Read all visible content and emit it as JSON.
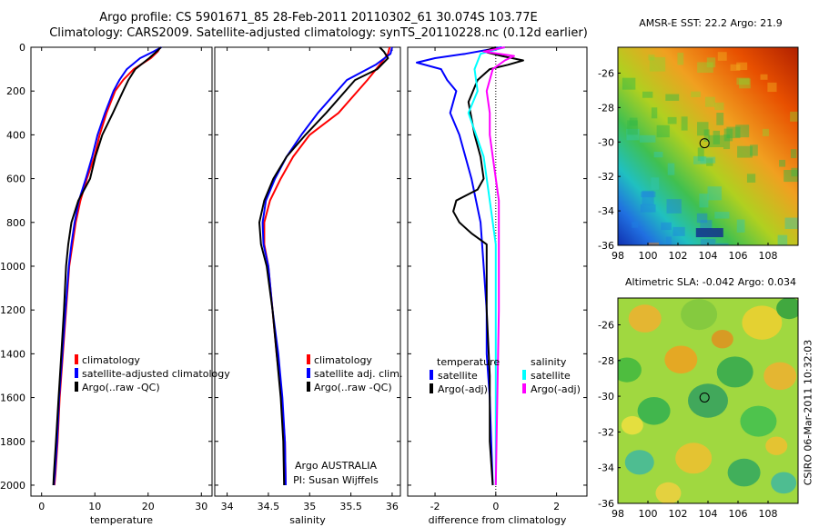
{
  "title_line1": "Argo profile: CS 5901671_85 28-Feb-2011 20110302_61 30.074S 103.77E",
  "title_line2": "Climatology: CARS2009. Satellite-adjusted climatology: synTS_20110228.nc (0.12d earlier)",
  "credit": "CSIRO 06-Mar-2011 10:32:03",
  "colors": {
    "climatology": "#ff0000",
    "satellite": "#0000ff",
    "argo": "#000000",
    "sat_salinity": "#00ffff",
    "argo_adj_salinity": "#ff00ff"
  },
  "chart_data": [
    {
      "type": "line",
      "name": "temperature-panel",
      "xlabel": "temperature",
      "ylabel": "",
      "xlim": [
        -2,
        32
      ],
      "ylim": [
        2050,
        0
      ],
      "xticks": [
        0,
        10,
        20,
        30
      ],
      "yticks": [
        0,
        200,
        400,
        600,
        800,
        1000,
        1200,
        1400,
        1600,
        1800,
        2000
      ],
      "series": [
        {
          "name": "climatology",
          "color": "#ff0000",
          "x": [
            22.3,
            21.8,
            20.5,
            17.3,
            15.3,
            13.8,
            12.2,
            10.9,
            9.9,
            8.5,
            7.3,
            6.4,
            5.8,
            5.2,
            4.6,
            4.0,
            3.4,
            3.0,
            2.6,
            2.4
          ],
          "y": [
            0,
            20,
            50,
            100,
            150,
            200,
            300,
            400,
            500,
            600,
            700,
            800,
            900,
            1000,
            1200,
            1400,
            1600,
            1800,
            1950,
            2000
          ]
        },
        {
          "name": "satellite-adjusted climatology",
          "color": "#0000ff",
          "x": [
            22.5,
            21.0,
            18.5,
            16.0,
            14.6,
            13.5,
            11.9,
            10.5,
            9.5,
            8.3,
            7.0,
            6.2,
            5.6,
            5.1,
            4.5,
            3.9,
            3.3,
            2.9,
            2.5,
            2.3
          ],
          "y": [
            0,
            20,
            50,
            100,
            150,
            200,
            300,
            400,
            500,
            600,
            700,
            800,
            900,
            1000,
            1200,
            1400,
            1600,
            1800,
            1950,
            2000
          ]
        },
        {
          "name": "Argo(..raw -QC)",
          "color": "#000000",
          "x": [
            22.4,
            21.6,
            20.2,
            17.6,
            16.3,
            15.3,
            13.4,
            11.4,
            10.1,
            9.1,
            6.9,
            5.6,
            5.0,
            4.6,
            4.2,
            3.7,
            3.2,
            2.7,
            2.3,
            2.2
          ],
          "y": [
            0,
            20,
            50,
            100,
            150,
            200,
            300,
            400,
            500,
            600,
            700,
            800,
            900,
            1000,
            1200,
            1400,
            1600,
            1800,
            1950,
            2000
          ]
        }
      ],
      "legend": {
        "position": "lower-center",
        "entries": [
          "climatology",
          "satellite-adjusted climatology",
          "Argo(..raw -QC)"
        ]
      }
    },
    {
      "type": "line",
      "name": "salinity-panel",
      "xlabel": "salinity",
      "ylabel": "",
      "xlim": [
        33.85,
        36.1
      ],
      "ylim": [
        2050,
        0
      ],
      "xticks": [
        34,
        34.5,
        35,
        35.5,
        36
      ],
      "xticklabels": [
        "34",
        "34.5",
        "35",
        "35.5",
        "36"
      ],
      "series": [
        {
          "name": "climatology",
          "color": "#ff0000",
          "x": [
            35.97,
            35.95,
            35.85,
            35.7,
            35.35,
            35.0,
            34.8,
            34.65,
            34.52,
            34.45,
            34.45,
            34.5,
            34.55,
            34.6,
            34.66,
            34.7,
            34.71
          ],
          "y": [
            0,
            30,
            80,
            150,
            300,
            400,
            500,
            600,
            700,
            800,
            900,
            1000,
            1200,
            1400,
            1600,
            1800,
            2000
          ]
        },
        {
          "name": "satellite adj. clim.",
          "color": "#0000ff",
          "x": [
            36.0,
            35.98,
            35.8,
            35.45,
            35.1,
            34.9,
            34.72,
            34.58,
            34.47,
            34.43,
            34.44,
            34.5,
            34.55,
            34.62,
            34.67,
            34.7,
            34.71
          ],
          "y": [
            0,
            30,
            80,
            150,
            300,
            400,
            500,
            600,
            700,
            800,
            900,
            1000,
            1200,
            1400,
            1600,
            1800,
            2000
          ]
        },
        {
          "name": "Argo(..raw -QC)",
          "color": "#000000",
          "x": [
            35.85,
            35.9,
            35.95,
            35.82,
            35.55,
            35.2,
            34.95,
            34.72,
            34.56,
            34.45,
            34.39,
            34.41,
            34.48,
            34.55,
            34.6,
            34.65,
            34.68,
            34.69
          ],
          "y": [
            0,
            20,
            50,
            100,
            150,
            300,
            400,
            500,
            600,
            700,
            800,
            900,
            1000,
            1200,
            1400,
            1600,
            1800,
            2000
          ]
        }
      ],
      "legend": {
        "position": "lower-center",
        "entries": [
          "climatology",
          "satellite adj. clim.",
          "Argo(..raw -QC)"
        ]
      },
      "annotation_line1": "Argo AUSTRALIA",
      "annotation_line2": "PI: Susan Wijffels"
    },
    {
      "type": "line",
      "name": "difference-panel",
      "xlabel": "difference from climatology",
      "ylabel": "",
      "xlim": [
        -2.9,
        3.0
      ],
      "ylim": [
        2050,
        0
      ],
      "xticks": [
        -2,
        0,
        2
      ],
      "xticklabels": [
        "-2",
        "0",
        "2"
      ],
      "series": [
        {
          "name": "temperature satellite",
          "color": "#0000ff",
          "x": [
            0.2,
            -1.0,
            -2.0,
            -2.6,
            -1.8,
            -1.6,
            -1.3,
            -1.5,
            -1.2,
            -0.8,
            -0.5,
            -0.4,
            -0.3,
            -0.3,
            -0.2,
            -0.15,
            -0.1
          ],
          "y": [
            0,
            30,
            50,
            70,
            100,
            150,
            200,
            300,
            400,
            600,
            800,
            1000,
            1200,
            1400,
            1600,
            1800,
            2000
          ]
        },
        {
          "name": "temperature Argo(-adj)",
          "color": "#000000",
          "x": [
            0,
            -0.4,
            0.2,
            0.9,
            0.4,
            -0.2,
            -0.6,
            -0.9,
            -0.7,
            -0.5,
            -0.4,
            -0.6,
            -1.3,
            -1.4,
            -1.2,
            -0.8,
            -0.3,
            -0.3,
            -0.3,
            -0.2,
            -0.2,
            -0.1
          ],
          "y": [
            0,
            20,
            40,
            60,
            80,
            100,
            150,
            250,
            400,
            500,
            600,
            650,
            700,
            750,
            800,
            850,
            900,
            1000,
            1200,
            1500,
            1800,
            2000
          ]
        },
        {
          "name": "salinity satellite",
          "color": "#00ffff",
          "x": [
            0.3,
            -0.5,
            -0.7,
            -0.6,
            -0.9,
            -0.4,
            -0.2,
            0,
            0,
            0,
            0
          ],
          "y": [
            0,
            30,
            100,
            200,
            300,
            500,
            700,
            900,
            1200,
            1600,
            2000
          ]
        },
        {
          "name": "salinity Argo(-adj)",
          "color": "#ff00ff",
          "x": [
            0.3,
            -0.4,
            0.6,
            0.3,
            -0.1,
            -0.3,
            -0.2,
            -0.2,
            -0.1,
            0.1,
            0.1,
            0.1,
            0.1,
            0.05,
            0
          ],
          "y": [
            0,
            20,
            40,
            60,
            100,
            200,
            300,
            400,
            500,
            700,
            800,
            900,
            1200,
            1600,
            2000
          ]
        }
      ],
      "legend": {
        "position": "lower-center",
        "group1_title": "temperature",
        "group2_title": "salinity",
        "entries": [
          "satellite",
          "Argo(-adj)",
          "satellite",
          "Argo(-adj)"
        ]
      }
    },
    {
      "type": "heatmap",
      "name": "sst-map",
      "title": "AMSR-E SST: 22.2  Argo: 21.9",
      "xlim": [
        98,
        110
      ],
      "ylim": [
        -36,
        -24.5
      ],
      "xticks": [
        98,
        100,
        102,
        104,
        106,
        108
      ],
      "yticks": [
        -26,
        -28,
        -30,
        -32,
        -34,
        -36
      ],
      "marker": {
        "lon": 103.77,
        "lat": -30.07
      }
    },
    {
      "type": "heatmap",
      "name": "sla-map",
      "title": "Altimetric SLA: -0.042  Argo: 0.034",
      "xlim": [
        98,
        110
      ],
      "ylim": [
        -36,
        -24.5
      ],
      "xticks": [
        98,
        100,
        102,
        104,
        106,
        108
      ],
      "yticks": [
        -26,
        -28,
        -30,
        -32,
        -34,
        -36
      ],
      "marker": {
        "lon": 103.77,
        "lat": -30.07
      }
    }
  ]
}
